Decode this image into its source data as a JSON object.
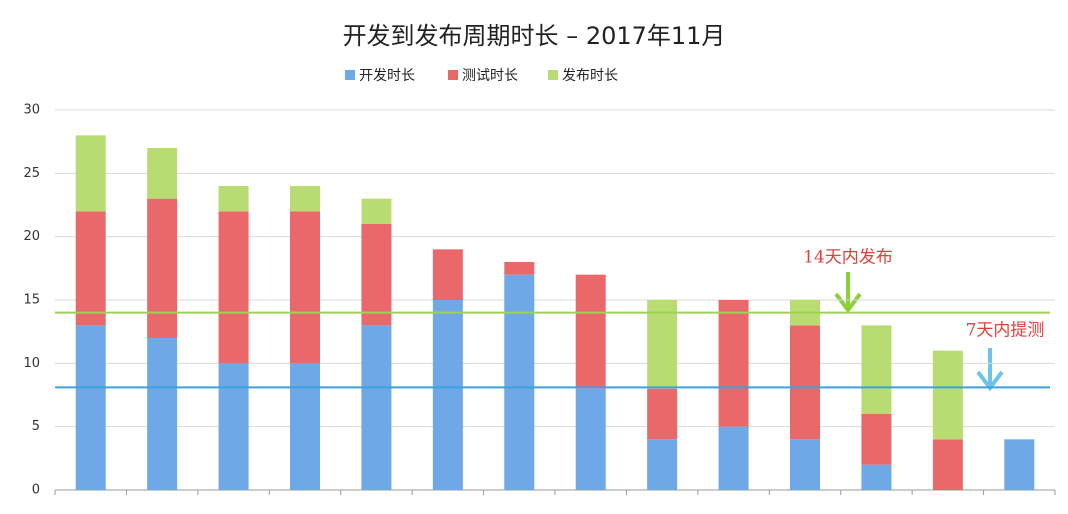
{
  "chart_data": {
    "type": "stacked-bar",
    "title": "开发到发布周期时长 – 2017年11月",
    "categories": [
      null,
      null,
      null,
      null,
      null,
      null,
      null,
      null,
      null,
      null,
      null,
      null,
      null,
      null
    ],
    "series": [
      {
        "name": "开发时长",
        "color": "#6ea8e6",
        "values": [
          13,
          12,
          10,
          10,
          13,
          15,
          17,
          8,
          4,
          5,
          4,
          2,
          0,
          4
        ]
      },
      {
        "name": "测试时长",
        "color": "#e9696b",
        "values": [
          9,
          11,
          12,
          12,
          8,
          4,
          1,
          9,
          4,
          10,
          9,
          4,
          4,
          0
        ]
      },
      {
        "name": "发布时长",
        "color": "#b9dc72",
        "values": [
          6,
          4,
          2,
          2,
          2,
          0,
          0,
          0,
          7,
          0,
          2,
          7,
          7,
          0
        ]
      }
    ],
    "ylim": [
      0,
      30
    ],
    "yticks": [
      0,
      5,
      10,
      15,
      20,
      25,
      30
    ],
    "grid": true,
    "reference_lines": [
      {
        "value": 14,
        "color": "#9fd05a",
        "label": "14天内发布"
      },
      {
        "value": 8.1,
        "color": "#3aa3df",
        "label": "7天内提测"
      }
    ]
  }
}
